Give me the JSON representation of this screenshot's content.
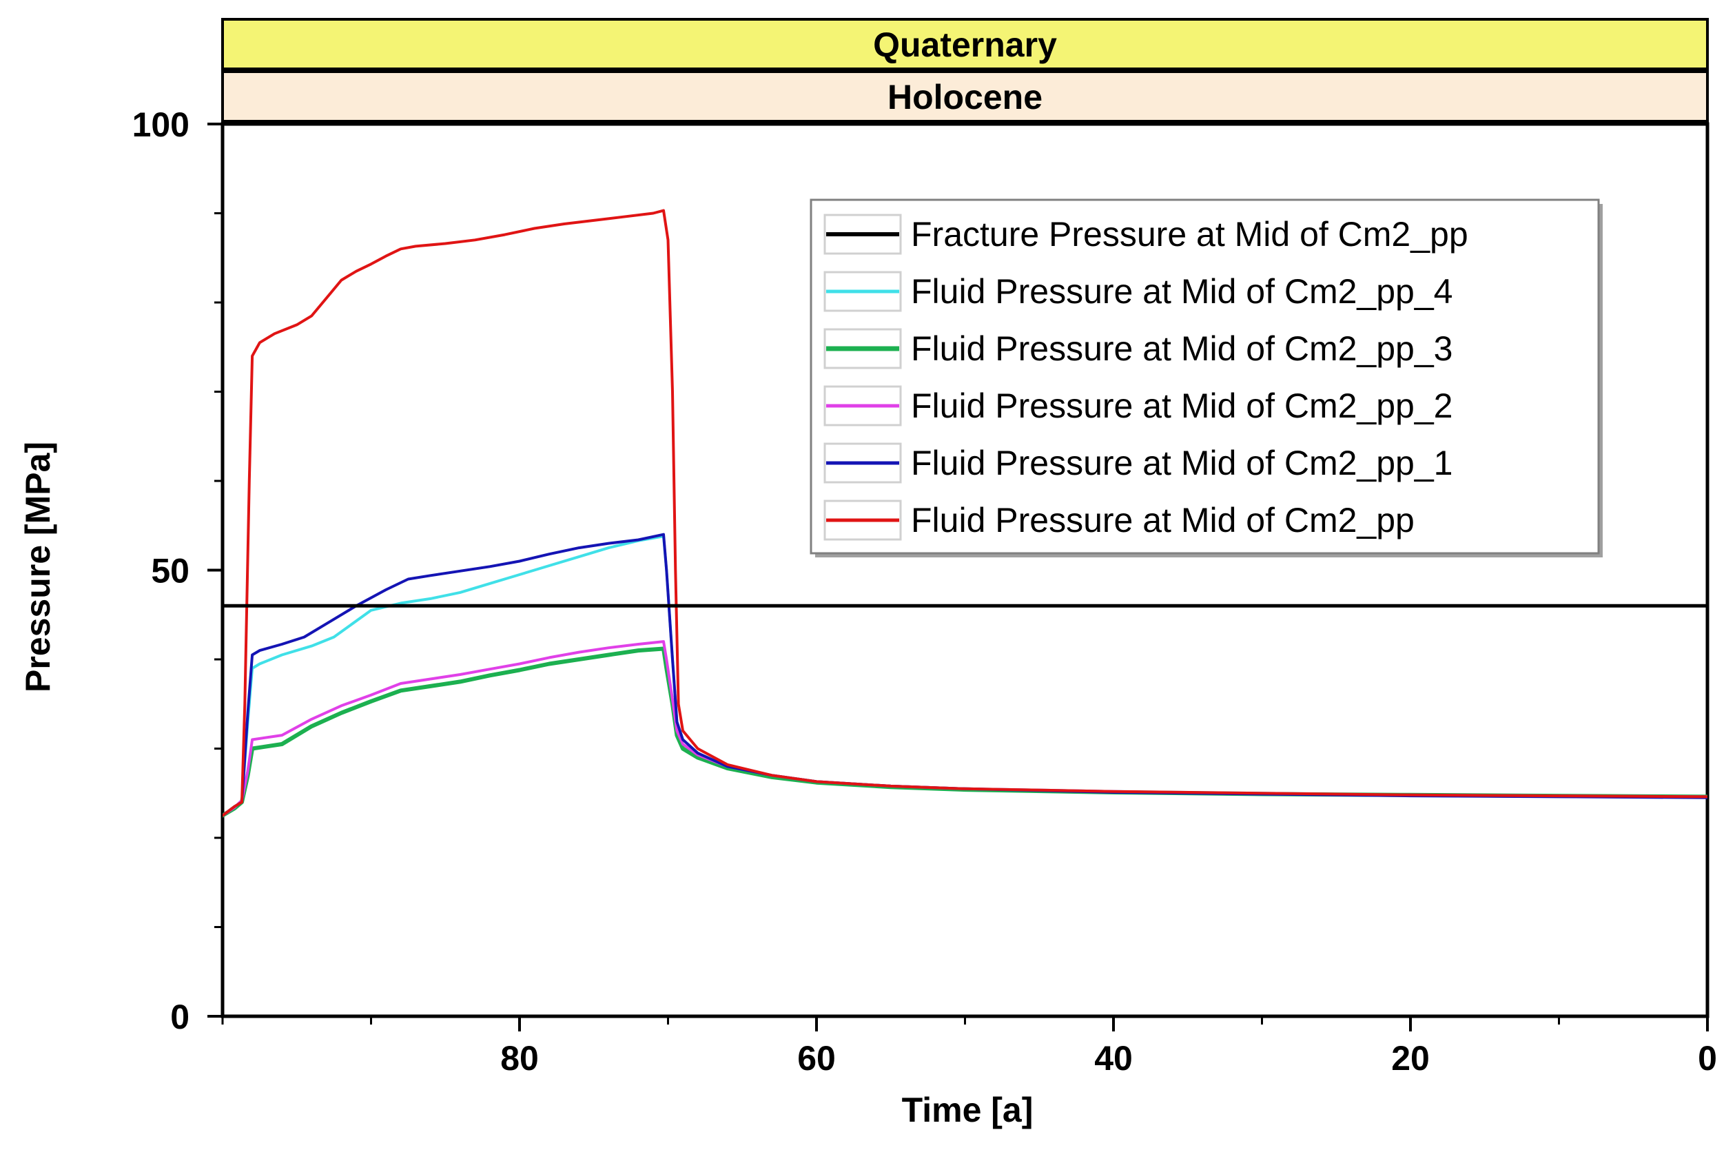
{
  "chart_data": {
    "type": "line",
    "title": "",
    "xlabel": "Time [a]",
    "ylabel": "Pressure [MPa]",
    "xlim": [
      100,
      0
    ],
    "ylim": [
      0,
      100
    ],
    "x_ticks": [
      80,
      60,
      40,
      20,
      0
    ],
    "x_minor_ticks": [
      100,
      90,
      70,
      50,
      30,
      10
    ],
    "y_ticks": [
      0,
      50,
      100
    ],
    "y_minor_ticks": [
      10,
      20,
      30,
      40,
      60,
      70,
      80,
      90
    ],
    "grid": false,
    "legend_position": "top-right",
    "header_bands": [
      {
        "label": "Quaternary",
        "color": "#f4f474"
      },
      {
        "label": "Holocene",
        "color": "#fcecd8"
      }
    ],
    "series": [
      {
        "name": "Fracture Pressure at Mid of Cm2_pp",
        "color": "#000000",
        "width": 5,
        "points": [
          [
            100,
            46
          ],
          [
            0,
            46
          ]
        ]
      },
      {
        "name": "Fluid Pressure at Mid of Cm2_pp_4",
        "color": "#40e0e8",
        "width": 4,
        "points": [
          [
            100,
            22.5
          ],
          [
            99.2,
            23.5
          ],
          [
            98.7,
            24
          ],
          [
            98.3,
            33
          ],
          [
            98,
            39
          ],
          [
            97.5,
            39.5
          ],
          [
            96,
            40.5
          ],
          [
            94,
            41.5
          ],
          [
            92.5,
            42.5
          ],
          [
            90,
            45.5
          ],
          [
            88,
            46.3
          ],
          [
            86,
            46.8
          ],
          [
            84,
            47.5
          ],
          [
            82,
            48.5
          ],
          [
            80,
            49.5
          ],
          [
            78,
            50.5
          ],
          [
            76,
            51.5
          ],
          [
            74,
            52.5
          ],
          [
            72,
            53.3
          ],
          [
            70.3,
            53.8
          ],
          [
            70.1,
            50
          ],
          [
            69.7,
            40
          ],
          [
            69.4,
            33
          ],
          [
            69,
            31
          ],
          [
            68,
            29.5
          ],
          [
            66,
            28
          ],
          [
            63,
            27
          ],
          [
            60,
            26.3
          ],
          [
            55,
            25.8
          ],
          [
            50,
            25.5
          ],
          [
            40,
            25.2
          ],
          [
            30,
            25
          ],
          [
            20,
            24.8
          ],
          [
            10,
            24.7
          ],
          [
            0,
            24.6
          ]
        ]
      },
      {
        "name": "Fluid Pressure at Mid of Cm2_pp_3",
        "color": "#1cb050",
        "width": 6,
        "points": [
          [
            100,
            22.5
          ],
          [
            99.2,
            23.3
          ],
          [
            98.7,
            24
          ],
          [
            98.3,
            27
          ],
          [
            98,
            30
          ],
          [
            96,
            30.5
          ],
          [
            94,
            32.5
          ],
          [
            92,
            34
          ],
          [
            90,
            35.3
          ],
          [
            88,
            36.5
          ],
          [
            86,
            37
          ],
          [
            84,
            37.5
          ],
          [
            82,
            38.2
          ],
          [
            80,
            38.8
          ],
          [
            78,
            39.5
          ],
          [
            76,
            40
          ],
          [
            74,
            40.5
          ],
          [
            72,
            41
          ],
          [
            70.3,
            41.2
          ],
          [
            70.1,
            39
          ],
          [
            69.7,
            35
          ],
          [
            69.4,
            31.5
          ],
          [
            69,
            30
          ],
          [
            68,
            29
          ],
          [
            66,
            27.8
          ],
          [
            63,
            26.8
          ],
          [
            60,
            26.2
          ],
          [
            55,
            25.7
          ],
          [
            50,
            25.4
          ],
          [
            40,
            25.1
          ],
          [
            30,
            24.9
          ],
          [
            20,
            24.8
          ],
          [
            10,
            24.7
          ],
          [
            0,
            24.6
          ]
        ]
      },
      {
        "name": "Fluid Pressure at Mid of Cm2_pp_2",
        "color": "#e040e8",
        "width": 4,
        "points": [
          [
            100,
            22.5
          ],
          [
            99.2,
            23.4
          ],
          [
            98.7,
            24.2
          ],
          [
            98.3,
            27.5
          ],
          [
            98,
            31
          ],
          [
            96,
            31.5
          ],
          [
            94,
            33.3
          ],
          [
            92,
            34.8
          ],
          [
            90,
            36
          ],
          [
            88,
            37.3
          ],
          [
            86,
            37.8
          ],
          [
            84,
            38.3
          ],
          [
            82,
            38.9
          ],
          [
            80,
            39.5
          ],
          [
            78,
            40.2
          ],
          [
            76,
            40.8
          ],
          [
            74,
            41.3
          ],
          [
            72,
            41.7
          ],
          [
            70.3,
            42
          ],
          [
            70.1,
            40
          ],
          [
            69.7,
            35.5
          ],
          [
            69.4,
            32
          ],
          [
            69,
            30.5
          ],
          [
            68,
            29.3
          ],
          [
            66,
            28
          ],
          [
            63,
            27
          ],
          [
            60,
            26.3
          ],
          [
            55,
            25.8
          ],
          [
            50,
            25.5
          ],
          [
            40,
            25.2
          ],
          [
            30,
            24.9
          ],
          [
            20,
            24.8
          ],
          [
            10,
            24.7
          ],
          [
            0,
            24.6
          ]
        ]
      },
      {
        "name": "Fluid Pressure at Mid of Cm2_pp_1",
        "color": "#1414b4",
        "width": 4,
        "points": [
          [
            100,
            22.5
          ],
          [
            99.2,
            23.5
          ],
          [
            98.7,
            24
          ],
          [
            98.3,
            34
          ],
          [
            98,
            40.5
          ],
          [
            97.5,
            41
          ],
          [
            96,
            41.7
          ],
          [
            94.5,
            42.5
          ],
          [
            93,
            44
          ],
          [
            91,
            46
          ],
          [
            89,
            47.8
          ],
          [
            87.5,
            49
          ],
          [
            86,
            49.4
          ],
          [
            84,
            49.9
          ],
          [
            82,
            50.4
          ],
          [
            80,
            51
          ],
          [
            78,
            51.8
          ],
          [
            76,
            52.5
          ],
          [
            74,
            53
          ],
          [
            72,
            53.4
          ],
          [
            70.3,
            54
          ],
          [
            70.1,
            50
          ],
          [
            69.7,
            40
          ],
          [
            69.4,
            33
          ],
          [
            69,
            31
          ],
          [
            68,
            29.5
          ],
          [
            66,
            28
          ],
          [
            63,
            27
          ],
          [
            60,
            26.3
          ],
          [
            55,
            25.8
          ],
          [
            50,
            25.5
          ],
          [
            40,
            25.1
          ],
          [
            30,
            24.9
          ],
          [
            20,
            24.7
          ],
          [
            10,
            24.6
          ],
          [
            0,
            24.5
          ]
        ]
      },
      {
        "name": "Fluid Pressure at Mid of Cm2_pp",
        "color": "#e01414",
        "width": 4,
        "points": [
          [
            100,
            22.5
          ],
          [
            99.2,
            23.5
          ],
          [
            98.7,
            24
          ],
          [
            98.5,
            35
          ],
          [
            98.2,
            60
          ],
          [
            98,
            74
          ],
          [
            97.5,
            75.5
          ],
          [
            96.5,
            76.5
          ],
          [
            95,
            77.5
          ],
          [
            94,
            78.5
          ],
          [
            93,
            80.5
          ],
          [
            92,
            82.5
          ],
          [
            91,
            83.5
          ],
          [
            90,
            84.3
          ],
          [
            89,
            85.2
          ],
          [
            88,
            86
          ],
          [
            87,
            86.3
          ],
          [
            85,
            86.6
          ],
          [
            83,
            87
          ],
          [
            81,
            87.6
          ],
          [
            79,
            88.3
          ],
          [
            77,
            88.8
          ],
          [
            75,
            89.2
          ],
          [
            73,
            89.6
          ],
          [
            71,
            90
          ],
          [
            70.3,
            90.3
          ],
          [
            70,
            87
          ],
          [
            69.7,
            70
          ],
          [
            69.5,
            50
          ],
          [
            69.3,
            35
          ],
          [
            69,
            32
          ],
          [
            68,
            30
          ],
          [
            66,
            28.2
          ],
          [
            63,
            27
          ],
          [
            60,
            26.3
          ],
          [
            55,
            25.8
          ],
          [
            50,
            25.5
          ],
          [
            40,
            25.2
          ],
          [
            30,
            25
          ],
          [
            20,
            24.8
          ],
          [
            10,
            24.7
          ],
          [
            0,
            24.6
          ]
        ]
      }
    ]
  }
}
